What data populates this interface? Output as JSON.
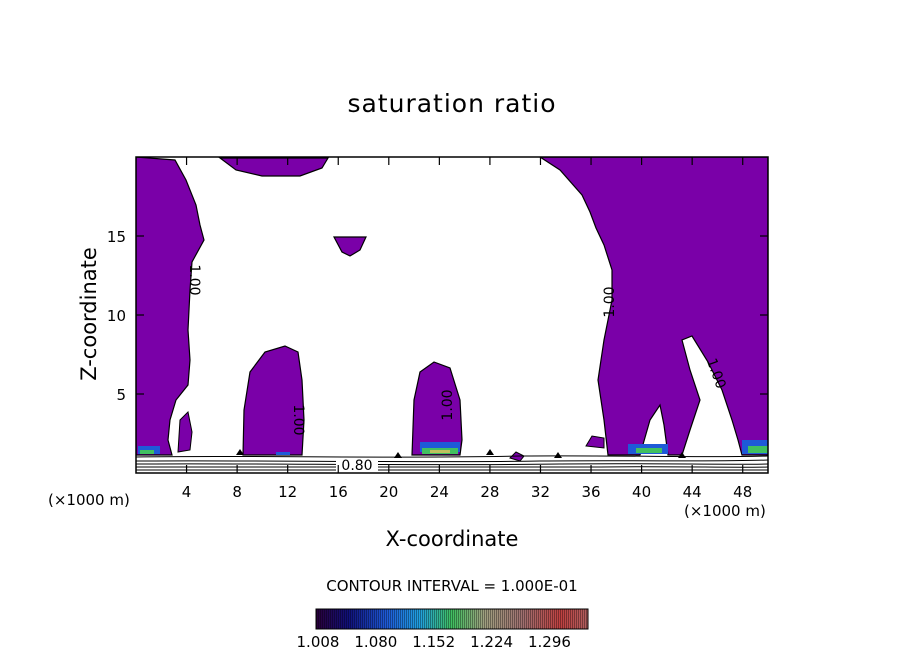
{
  "chart_data": {
    "type": "contour",
    "title": "saturation ratio",
    "xlabel": "X-coordinate",
    "ylabel": "Z-coordinate",
    "x_unit_left": "(×1000 m)",
    "x_unit_right": "(×1000 m)",
    "xlim": [
      0,
      50
    ],
    "ylim": [
      0,
      20
    ],
    "x_ticks": [
      4,
      8,
      12,
      16,
      20,
      24,
      28,
      32,
      36,
      40,
      44,
      48
    ],
    "y_ticks": [
      5,
      10,
      15
    ],
    "contour_interval_text": "CONTOUR INTERVAL = 1.000E-01",
    "contour_labels": [
      "1.00",
      "1.00",
      "1.00",
      "1.00",
      "1.00",
      "0.80"
    ],
    "colorbar": {
      "tick_labels": [
        "1.008",
        "1.080",
        "1.152",
        "1.224",
        "1.296"
      ],
      "range": [
        1.0,
        1.3
      ],
      "fill_color": "#7a00a8"
    },
    "grid": false
  }
}
